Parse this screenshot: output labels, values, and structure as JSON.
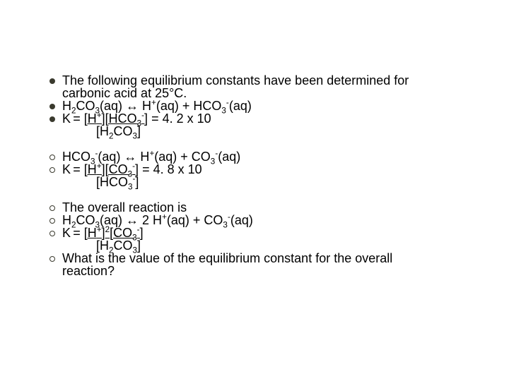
{
  "groups": [
    {
      "bullet_style": "filled",
      "lines": [
        {
          "html": "The following equilibrium constants have been determined for carbonic acid at 25°C."
        },
        {
          "html": "H<sub>2</sub>CO<sub>3</sub>(aq) ↔ H<sup>+</sup>(aq) + HCO<sub>3</sub><sup>-</sup>(aq)"
        },
        {
          "html": "K<sub> </sub>= <span class='und'>[H<sup>+</sup>][HCO<sub>3</sub><sup>-</sup>]</span> = 4. 2 x 10",
          "after": "[H<sub>2</sub>CO<sub>3</sub>]"
        }
      ]
    },
    {
      "bullet_style": "hollow",
      "lines": [
        {
          "html": "HCO<sub>3</sub><sup>-</sup>(aq) ↔ H<sup>+</sup>(aq) + CO<sub>3</sub><sup>-</sup>(aq)"
        },
        {
          "html": "K<sub> </sub>= <span class='und'>[H<sup>+</sup>][CO<sub>3</sub><sup>-</sup>]</span> = 4. 8 x 10",
          "after": "[HCO<sub>3</sub><sup>-</sup>]"
        }
      ]
    },
    {
      "bullet_style": "hollow",
      "lines": [
        {
          "html": "The overall reaction is"
        },
        {
          "html": "H<sub>2</sub>CO<sub>3</sub>(aq) ↔ 2 H<sup>+</sup>(aq) + CO<sub>3</sub><sup>-</sup>(aq)"
        },
        {
          "html": "K<sub> </sub>= <span class='und'>[H<sup>+</sup>]<sup>2</sup>[CO<sub>3</sub><sup>-</sup>]</span>",
          "after": "[H<sub>2</sub>CO<sub>3</sub>]"
        },
        {
          "html": "What is the value of the equilibrium constant for the overall reaction?"
        }
      ]
    }
  ],
  "colors": {
    "bullet": "#3a3a2e",
    "text": "#000000",
    "background": "#ffffff"
  }
}
